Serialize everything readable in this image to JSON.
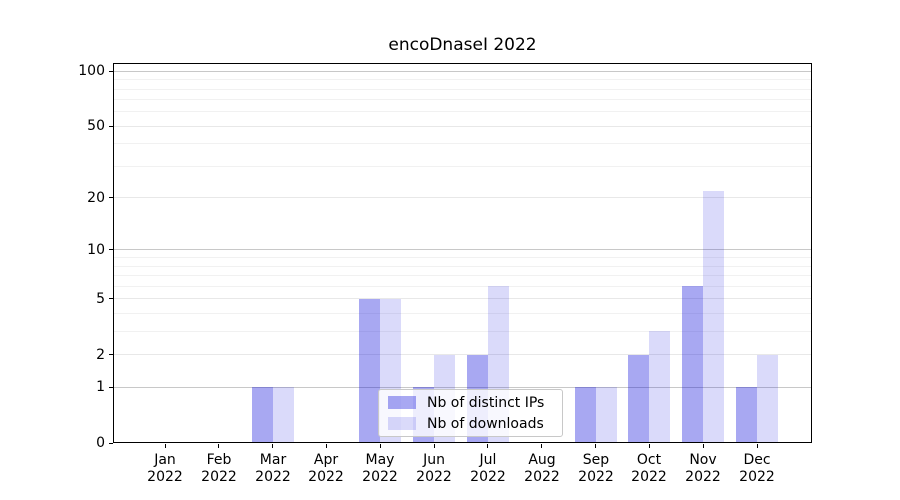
{
  "title": "encoDnaseI 2022",
  "legend": {
    "items": [
      {
        "label": "Nb of distinct IPs",
        "swatch_color": "rgba(7,7,219,0.35)"
      },
      {
        "label": "Nb of downloads",
        "swatch_color": "rgba(7,7,219,0.15)"
      }
    ]
  },
  "chart_data": {
    "type": "bar",
    "title": "encoDnaseI 2022",
    "categories": [
      "Jan 2022",
      "Feb 2022",
      "Mar 2022",
      "Apr 2022",
      "May 2022",
      "Jun 2022",
      "Jul 2022",
      "Aug 2022",
      "Sep 2022",
      "Oct 2022",
      "Nov 2022",
      "Dec 2022"
    ],
    "series": [
      {
        "name": "Nb of distinct IPs",
        "color": "rgba(7,7,219,0.35)",
        "values": [
          0,
          0,
          1,
          0,
          5,
          1,
          2,
          0,
          1,
          2,
          6,
          1
        ]
      },
      {
        "name": "Nb of downloads",
        "color": "rgba(7,7,219,0.15)",
        "values": [
          0,
          0,
          1,
          0,
          5,
          2,
          6,
          0,
          1,
          3,
          22,
          2
        ]
      }
    ],
    "yscale": "log1p",
    "ylim": [
      0,
      111
    ],
    "yticks": [
      0,
      1,
      2,
      5,
      10,
      20,
      50,
      100
    ],
    "minor_yticks": [
      3,
      4,
      6,
      7,
      8,
      9,
      30,
      40,
      60,
      70,
      80,
      90
    ],
    "grid": "horizontal",
    "legend_position": "lower center",
    "colors": {
      "major_grid": "#c8c8c8",
      "labeled_grid": "#e8e8e8",
      "minor_grid": "#f1f1f1",
      "spine": "#000000",
      "background": "#ffffff"
    }
  }
}
